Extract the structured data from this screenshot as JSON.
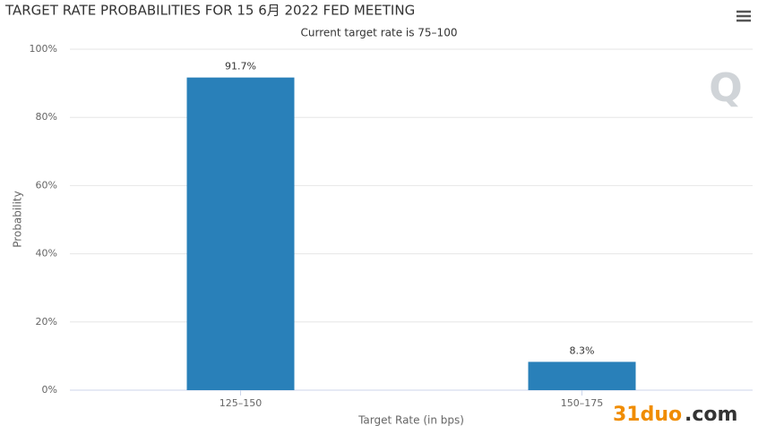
{
  "chart_data": {
    "type": "bar",
    "title": "TARGET RATE PROBABILITIES FOR 15 6月 2022 FED MEETING",
    "subtitle": "Current target rate is 75–100",
    "x_label": "Target Rate (in bps)",
    "y_label": "Probability",
    "categories": [
      "125–150",
      "150–175"
    ],
    "values": [
      91.7,
      8.3
    ],
    "value_labels": [
      "91.7%",
      "8.3%"
    ],
    "color": "#2980b9",
    "ylim": [
      0,
      100
    ],
    "yticks": [
      {
        "value": 0,
        "label": "0%"
      },
      {
        "value": 20,
        "label": "20%"
      },
      {
        "value": 40,
        "label": "40%"
      },
      {
        "value": 60,
        "label": "60%"
      },
      {
        "value": 80,
        "label": "80%"
      },
      {
        "value": 100,
        "label": "100%"
      }
    ],
    "grid": true,
    "logo": "Q",
    "watermark": [
      "31duo",
      ".com"
    ]
  }
}
